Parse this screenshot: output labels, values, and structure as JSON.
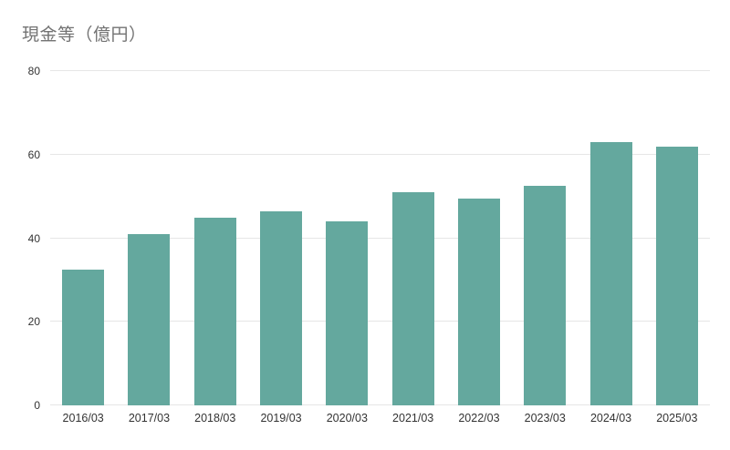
{
  "chart": {
    "title": "現金等（億円）"
  },
  "colors": {
    "bar": "#64a89e",
    "gridline": "#e6e6e6",
    "title_text": "#737373",
    "axis_text": "#333333",
    "background": "#ffffff"
  },
  "chart_data": {
    "type": "bar",
    "title": "現金等（億円）",
    "categories": [
      "2016/03",
      "2017/03",
      "2018/03",
      "2019/03",
      "2020/03",
      "2021/03",
      "2022/03",
      "2023/03",
      "2024/03",
      "2025/03"
    ],
    "values": [
      32.5,
      41,
      45,
      46.5,
      44,
      51,
      49.5,
      52.5,
      63,
      62
    ],
    "xlabel": "",
    "ylabel": "",
    "ylim": [
      0,
      80
    ],
    "yticks": [
      0,
      20,
      40,
      60,
      80
    ],
    "grid": "horizontal",
    "legend": "none"
  }
}
